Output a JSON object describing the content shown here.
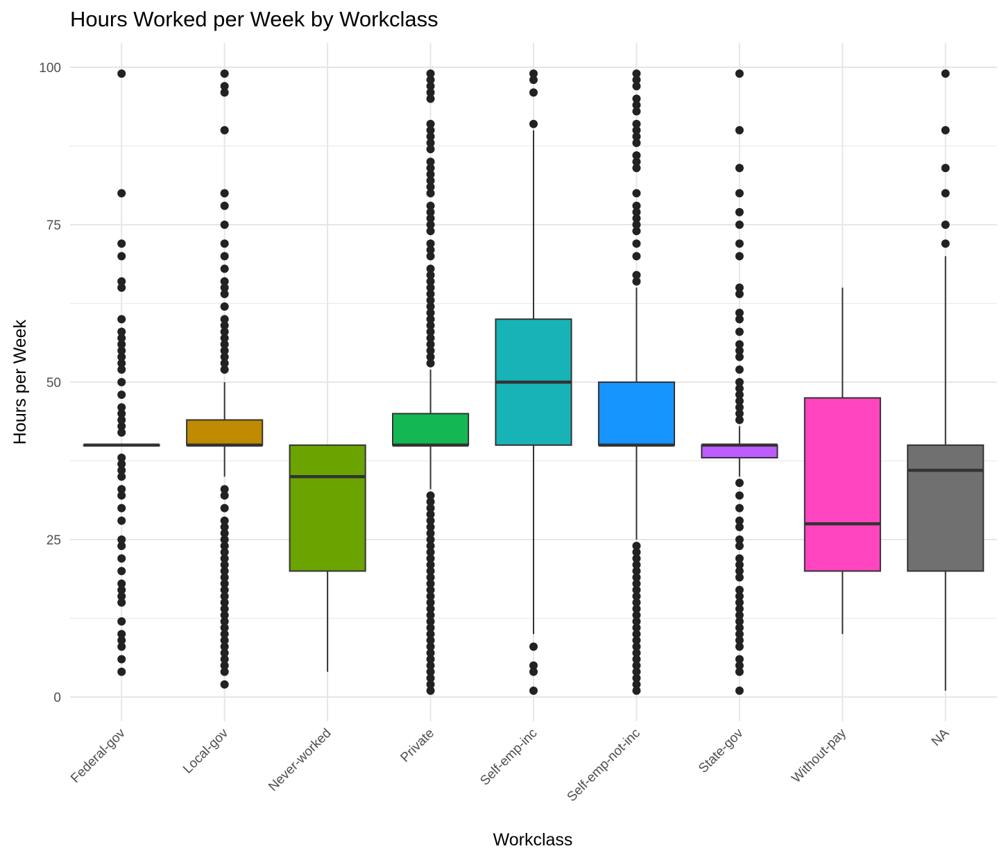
{
  "chart_data": {
    "type": "boxplot",
    "title": "Hours Worked per Week by Workclass",
    "xlabel": "Workclass",
    "ylabel": "Hours per Week",
    "ylim": [
      -3,
      104
    ],
    "yticks": [
      0,
      25,
      50,
      75,
      100
    ],
    "grid": true,
    "categories": [
      "Federal-gov",
      "Local-gov",
      "Never-worked",
      "Private",
      "Self-emp-inc",
      "Self-emp-not-inc",
      "State-gov",
      "Without-pay",
      "NA"
    ],
    "series": [
      {
        "category": "Federal-gov",
        "color": "#F8766D",
        "q1": 40,
        "median": 40,
        "q3": 40,
        "whisker_low": 40,
        "whisker_high": 40,
        "outliers": [
          99,
          80,
          72,
          70,
          66,
          65,
          60,
          58,
          57,
          56,
          55,
          54,
          53,
          52,
          50,
          48,
          46,
          45,
          44,
          43,
          42,
          38,
          37,
          36,
          35,
          33,
          32,
          30,
          28,
          25,
          24,
          22,
          20,
          18,
          17,
          16,
          15,
          12,
          10,
          9,
          8,
          6,
          4
        ]
      },
      {
        "category": "Local-gov",
        "color": "#C08B00",
        "q1": 40,
        "median": 40,
        "q3": 44,
        "whisker_low": 35,
        "whisker_high": 50,
        "outliers": [
          99,
          97,
          96,
          90,
          80,
          78,
          75,
          72,
          70,
          68,
          66,
          65,
          64,
          62,
          60,
          59,
          58,
          57,
          56,
          55,
          54,
          53,
          52,
          33,
          32,
          30,
          28,
          27,
          26,
          25,
          24,
          23,
          22,
          21,
          20,
          19,
          18,
          17,
          16,
          15,
          14,
          13,
          12,
          11,
          10,
          9,
          8,
          7,
          6,
          5,
          4,
          2
        ]
      },
      {
        "category": "Never-worked",
        "color": "#6BA300",
        "q1": 20,
        "median": 35,
        "q3": 40,
        "whisker_low": 4,
        "whisker_high": 40,
        "outliers": []
      },
      {
        "category": "Private",
        "color": "#14B853",
        "q1": 40,
        "median": 40,
        "q3": 45,
        "whisker_low": 33,
        "whisker_high": 52,
        "outliers": [
          99,
          98,
          97,
          96,
          95,
          91,
          90,
          89,
          88,
          87,
          85,
          84,
          83,
          82,
          81,
          80,
          78,
          77,
          76,
          75,
          74,
          72,
          71,
          70,
          68,
          67,
          66,
          65,
          64,
          63,
          62,
          61,
          60,
          59,
          58,
          57,
          56,
          55,
          54,
          53,
          32,
          31,
          30,
          29,
          28,
          27,
          26,
          25,
          24,
          23,
          22,
          21,
          20,
          19,
          18,
          17,
          16,
          15,
          14,
          13,
          12,
          11,
          10,
          9,
          8,
          7,
          6,
          5,
          4,
          3,
          2,
          1
        ]
      },
      {
        "category": "Self-emp-inc",
        "color": "#18B3B6",
        "q1": 40,
        "median": 50,
        "q3": 60,
        "whisker_low": 10,
        "whisker_high": 90,
        "outliers": [
          99,
          98,
          96,
          91,
          8,
          5,
          4,
          1
        ]
      },
      {
        "category": "Self-emp-not-inc",
        "color": "#1795FF",
        "q1": 40,
        "median": 40,
        "q3": 50,
        "whisker_low": 25,
        "whisker_high": 65,
        "outliers": [
          99,
          98,
          97,
          95,
          94,
          93,
          91,
          90,
          89,
          88,
          86,
          85,
          84,
          80,
          78,
          77,
          76,
          75,
          74,
          72,
          70,
          67,
          66,
          24,
          23,
          22,
          21,
          20,
          19,
          18,
          17,
          16,
          15,
          14,
          13,
          12,
          11,
          10,
          9,
          8,
          7,
          6,
          5,
          4,
          3,
          2,
          1
        ]
      },
      {
        "category": "State-gov",
        "color": "#BD5CFF",
        "q1": 38,
        "median": 40,
        "q3": 40,
        "whisker_low": 35,
        "whisker_high": 43,
        "outliers": [
          99,
          90,
          84,
          80,
          77,
          75,
          72,
          70,
          65,
          64,
          61,
          60,
          58,
          56,
          55,
          54,
          52,
          50,
          49,
          48,
          47,
          46,
          45,
          44,
          34,
          32,
          30,
          28,
          27,
          25,
          24,
          22,
          21,
          20,
          19,
          17,
          16,
          15,
          14,
          13,
          12,
          11,
          10,
          9,
          8,
          6,
          5,
          4,
          1
        ]
      },
      {
        "category": "Without-pay",
        "color": "#FF45C0",
        "q1": 20,
        "median": 27.5,
        "q3": 47.5,
        "whisker_low": 10,
        "whisker_high": 65,
        "outliers": []
      },
      {
        "category": "NA",
        "color": "#707070",
        "q1": 20,
        "median": 36,
        "q3": 40,
        "whisker_low": 1,
        "whisker_high": 70,
        "outliers": [
          99,
          90,
          84,
          80,
          75,
          72
        ]
      }
    ]
  }
}
